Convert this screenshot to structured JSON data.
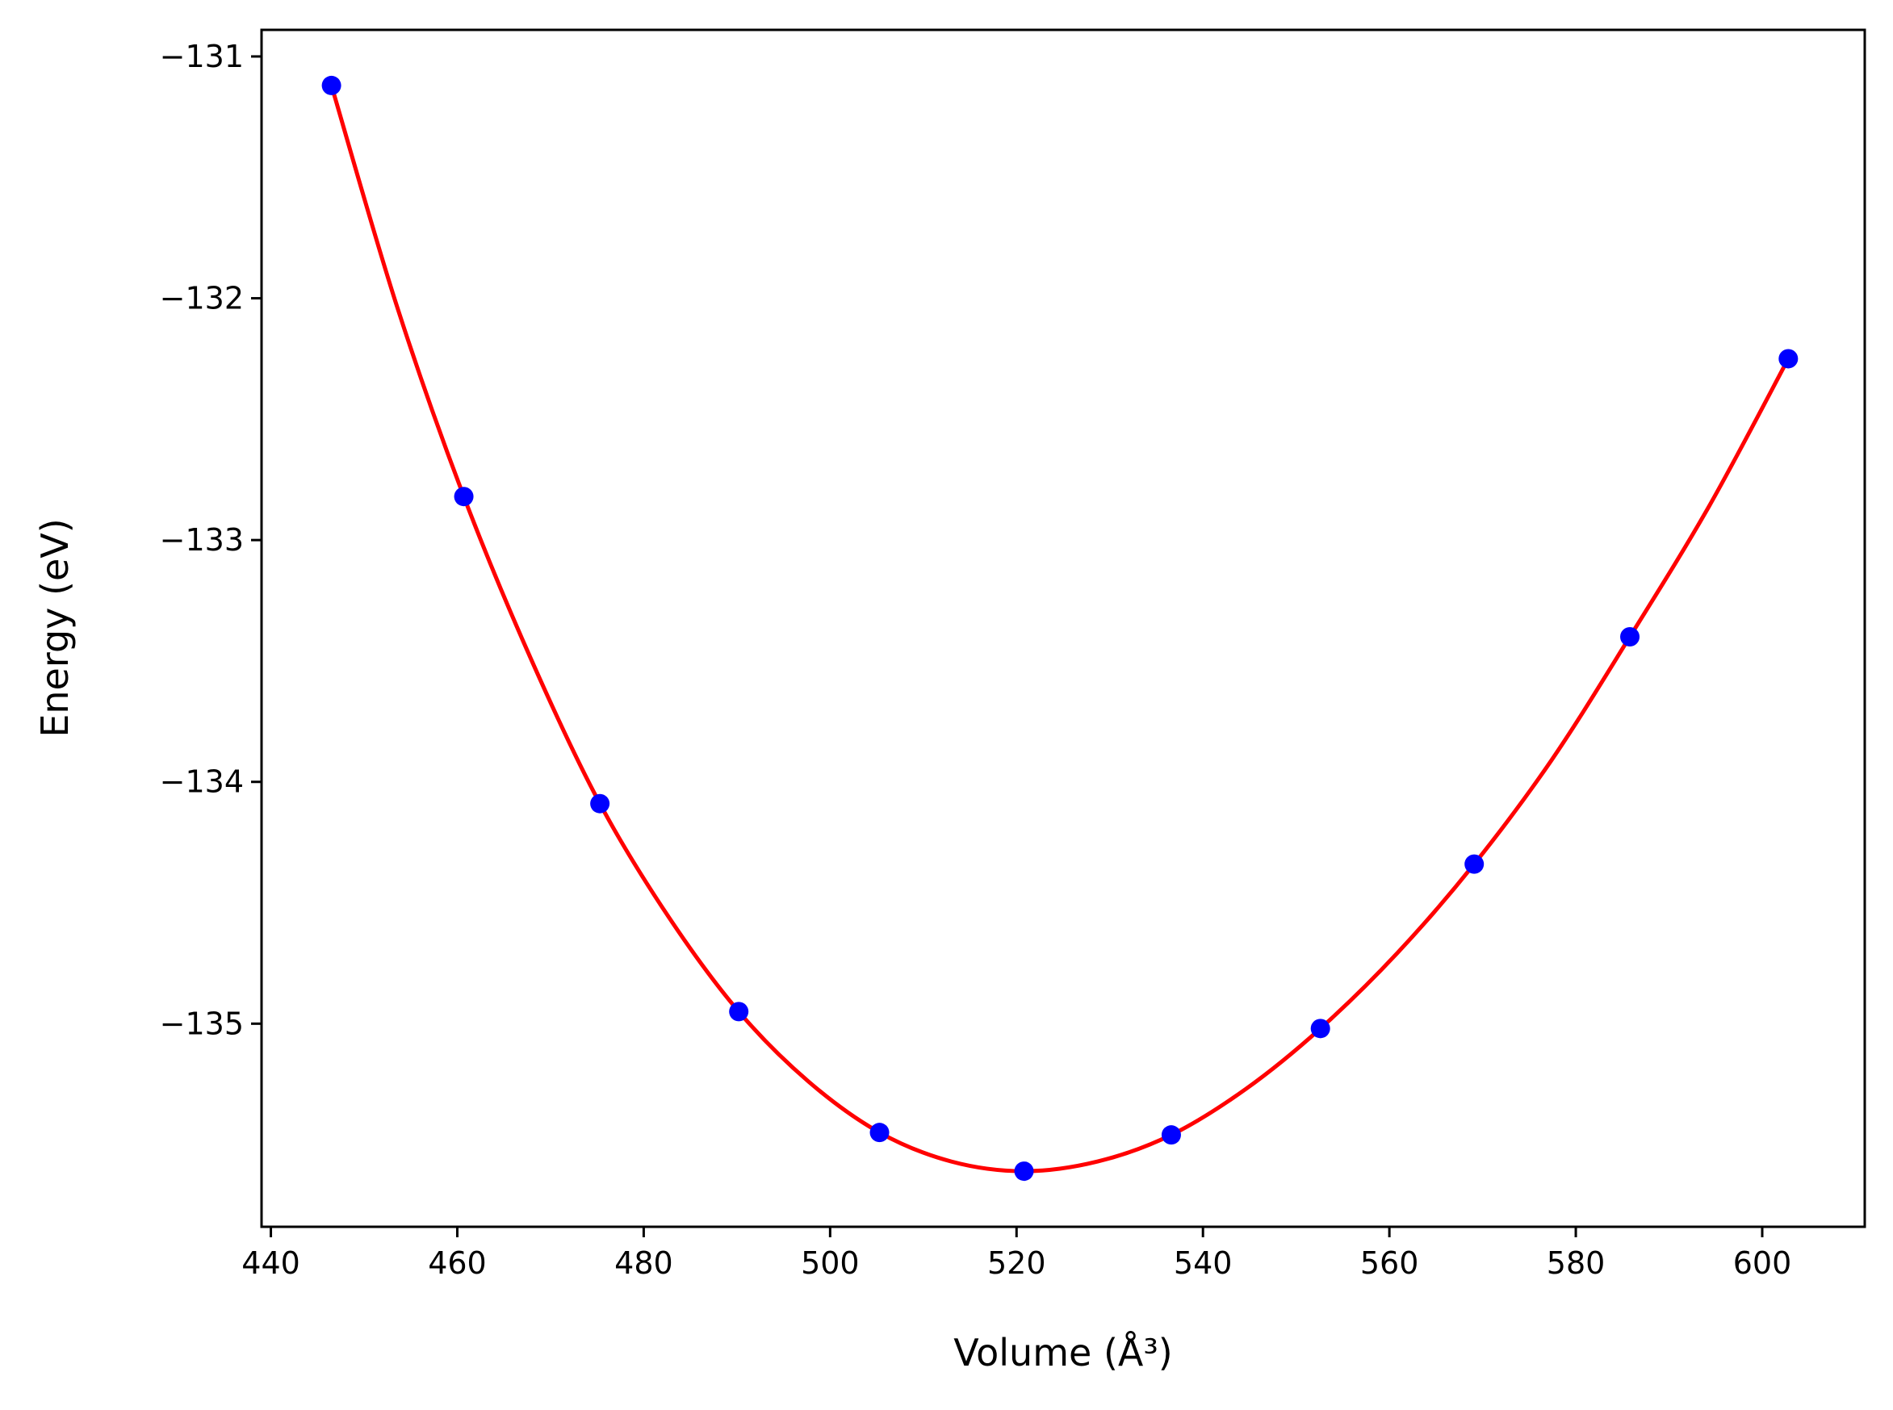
{
  "chart_data": {
    "type": "scatter",
    "xlabel": "Volume (Å³)",
    "ylabel": "Energy (eV)",
    "xlim": [
      439,
      611
    ],
    "ylim": [
      -135.84,
      -130.89
    ],
    "xticks": [
      440,
      460,
      480,
      500,
      520,
      540,
      560,
      580,
      600
    ],
    "yticks": [
      -135,
      -134,
      -133,
      -132,
      -131
    ],
    "xtick_labels": [
      "440",
      "460",
      "480",
      "500",
      "520",
      "540",
      "560",
      "580",
      "600"
    ],
    "ytick_labels": [
      "−135",
      "−134",
      "−133",
      "−132",
      "−131"
    ],
    "grid": false,
    "legend": "none",
    "series": [
      {
        "kind": "points",
        "color": "#0000ff",
        "x": [
          446.5,
          460.7,
          475.3,
          490.2,
          505.3,
          520.8,
          536.6,
          552.6,
          569.1,
          585.8,
          602.8
        ],
        "y": [
          -131.12,
          -132.82,
          -134.09,
          -134.95,
          -135.45,
          -135.61,
          -135.46,
          -135.02,
          -134.34,
          -133.4,
          -132.25
        ]
      },
      {
        "kind": "fit-curve",
        "color": "#ff0000",
        "x": [
          446.5,
          453.5,
          460.7,
          468.0,
          475.3,
          482.7,
          490.2,
          497.7,
          505.3,
          513.0,
          520.8,
          528.7,
          536.6,
          544.6,
          552.6,
          560.8,
          569.1,
          577.4,
          585.8,
          594.3,
          602.8
        ],
        "y": [
          -131.12,
          -132.03,
          -132.82,
          -133.5,
          -134.09,
          -134.56,
          -134.95,
          -135.24,
          -135.45,
          -135.57,
          -135.61,
          -135.57,
          -135.46,
          -135.27,
          -135.02,
          -134.71,
          -134.34,
          -133.91,
          -133.4,
          -132.86,
          -132.25
        ]
      }
    ]
  }
}
